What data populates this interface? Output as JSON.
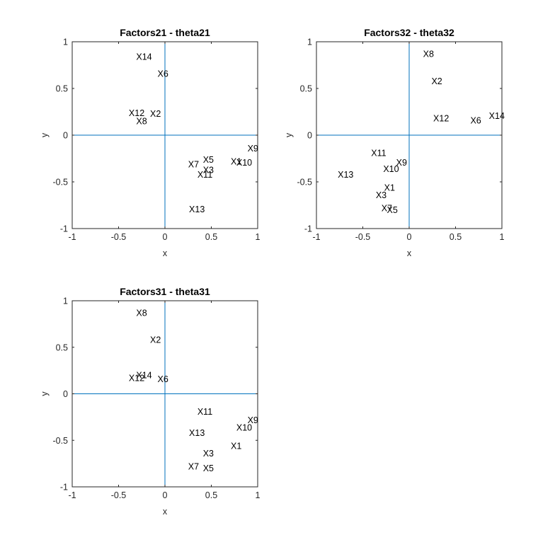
{
  "chart_data": [
    {
      "type": "scatter",
      "title": "Factors21 - theta21",
      "xlabel": "x",
      "ylabel": "y",
      "xlim": [
        -1,
        1
      ],
      "ylim": [
        -1,
        1
      ],
      "xticks": [
        "-1",
        "-0.5",
        "0",
        "0.5",
        "1"
      ],
      "yticks": [
        "-1",
        "-0.5",
        "0",
        "0.5",
        "1"
      ],
      "crosshair_color": "#0072BD",
      "points": [
        {
          "label": "X14",
          "x": -0.31,
          "y": 0.84
        },
        {
          "label": "X6",
          "x": -0.08,
          "y": 0.66
        },
        {
          "label": "X12",
          "x": -0.39,
          "y": 0.24
        },
        {
          "label": "X2",
          "x": -0.16,
          "y": 0.23
        },
        {
          "label": "X8",
          "x": -0.31,
          "y": 0.15
        },
        {
          "label": "X9",
          "x": 0.89,
          "y": -0.14
        },
        {
          "label": "X5",
          "x": 0.41,
          "y": -0.26
        },
        {
          "label": "X10",
          "x": 0.77,
          "y": -0.29
        },
        {
          "label": "X7",
          "x": 0.25,
          "y": -0.31
        },
        {
          "label": "X3",
          "x": 0.41,
          "y": -0.37
        },
        {
          "label": "X1",
          "x": 0.71,
          "y": -0.28
        },
        {
          "label": "X11",
          "x": 0.35,
          "y": -0.42
        },
        {
          "label": "X13",
          "x": 0.26,
          "y": -0.79
        }
      ]
    },
    {
      "type": "scatter",
      "title": "Factors32 - theta32",
      "xlabel": "x",
      "ylabel": "y",
      "xlim": [
        -1,
        1
      ],
      "ylim": [
        -1,
        1
      ],
      "xticks": [
        "-1",
        "-0.5",
        "0",
        "0.5",
        "1"
      ],
      "yticks": [
        "-1",
        "-0.5",
        "0",
        "0.5",
        "1"
      ],
      "crosshair_color": "#0072BD",
      "points": [
        {
          "label": "X8",
          "x": 0.15,
          "y": 0.87
        },
        {
          "label": "X2",
          "x": 0.24,
          "y": 0.58
        },
        {
          "label": "X12",
          "x": 0.26,
          "y": 0.18
        },
        {
          "label": "X6",
          "x": 0.66,
          "y": 0.16
        },
        {
          "label": "X14",
          "x": 0.86,
          "y": 0.21
        },
        {
          "label": "X11",
          "x": -0.41,
          "y": -0.19
        },
        {
          "label": "X9",
          "x": -0.14,
          "y": -0.29
        },
        {
          "label": "X10",
          "x": -0.28,
          "y": -0.36
        },
        {
          "label": "X13",
          "x": -0.77,
          "y": -0.42
        },
        {
          "label": "X1",
          "x": -0.27,
          "y": -0.56
        },
        {
          "label": "X3",
          "x": -0.36,
          "y": -0.64
        },
        {
          "label": "X7",
          "x": -0.3,
          "y": -0.78
        },
        {
          "label": "X5",
          "x": -0.24,
          "y": -0.8
        }
      ]
    },
    {
      "type": "scatter",
      "title": "Factors31 - theta31",
      "xlabel": "x",
      "ylabel": "y",
      "xlim": [
        -1,
        1
      ],
      "ylim": [
        -1,
        1
      ],
      "xticks": [
        "-1",
        "-0.5",
        "0",
        "0.5",
        "1"
      ],
      "yticks": [
        "-1",
        "-0.5",
        "0",
        "0.5",
        "1"
      ],
      "crosshair_color": "#0072BD",
      "points": [
        {
          "label": "X8",
          "x": -0.31,
          "y": 0.87
        },
        {
          "label": "X2",
          "x": -0.16,
          "y": 0.58
        },
        {
          "label": "X14",
          "x": -0.31,
          "y": 0.2
        },
        {
          "label": "X12",
          "x": -0.39,
          "y": 0.17
        },
        {
          "label": "X6",
          "x": -0.08,
          "y": 0.16
        },
        {
          "label": "X11",
          "x": 0.35,
          "y": -0.19
        },
        {
          "label": "X9",
          "x": 0.89,
          "y": -0.28
        },
        {
          "label": "X10",
          "x": 0.77,
          "y": -0.36
        },
        {
          "label": "X13",
          "x": 0.26,
          "y": -0.42
        },
        {
          "label": "X1",
          "x": 0.71,
          "y": -0.56
        },
        {
          "label": "X3",
          "x": 0.41,
          "y": -0.64
        },
        {
          "label": "X7",
          "x": 0.25,
          "y": -0.78
        },
        {
          "label": "X5",
          "x": 0.41,
          "y": -0.8
        }
      ]
    }
  ]
}
